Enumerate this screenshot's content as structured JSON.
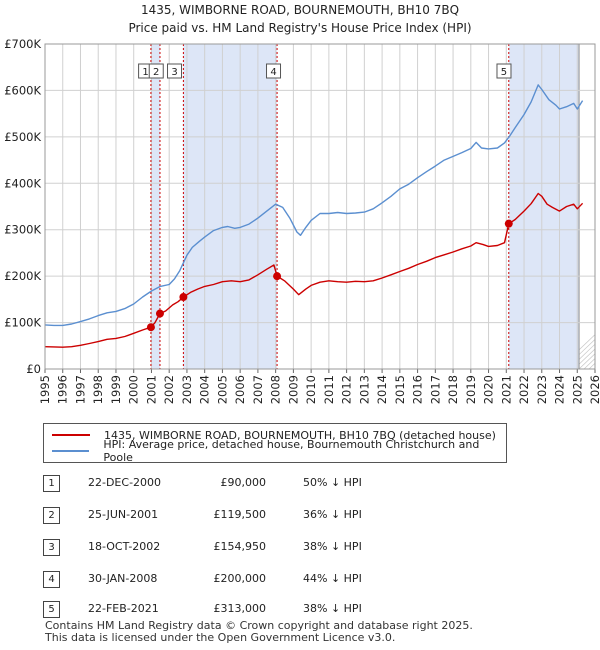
{
  "chart_data": {
    "type": "line",
    "title": "1435, WIMBORNE ROAD, BOURNEMOUTH, BH10 7BQ",
    "subtitle": "Price paid vs. HM Land Registry's House Price Index (HPI)",
    "xlabel": "",
    "ylabel": "",
    "xlim": [
      1995,
      2026
    ],
    "ylim": [
      0,
      700000
    ],
    "x_ticks": [
      "1995",
      "1996",
      "1997",
      "1998",
      "1999",
      "2000",
      "2001",
      "2002",
      "2003",
      "2004",
      "2005",
      "2006",
      "2007",
      "2008",
      "2009",
      "2010",
      "2011",
      "2012",
      "2013",
      "2014",
      "2015",
      "2016",
      "2017",
      "2018",
      "2019",
      "2020",
      "2021",
      "2022",
      "2023",
      "2024",
      "2025",
      "2026"
    ],
    "y_ticks": [
      {
        "value": 0,
        "label": "£0"
      },
      {
        "value": 100000,
        "label": "£100K"
      },
      {
        "value": 200000,
        "label": "£200K"
      },
      {
        "value": 300000,
        "label": "£300K"
      },
      {
        "value": 400000,
        "label": "£400K"
      },
      {
        "value": 500000,
        "label": "£500K"
      },
      {
        "value": 600000,
        "label": "£600K"
      },
      {
        "value": 700000,
        "label": "£700K"
      }
    ],
    "grid": true,
    "projection_start": 2025.1,
    "series": [
      {
        "name": "1435, WIMBORNE ROAD, BOURNEMOUTH, BH10 7BQ (detached house)",
        "color": "#cc0000",
        "points": [
          [
            1995,
            48000
          ],
          [
            1995.5,
            47500
          ],
          [
            1996,
            47000
          ],
          [
            1996.5,
            48000
          ],
          [
            1997,
            51000
          ],
          [
            1997.5,
            55000
          ],
          [
            1998,
            59000
          ],
          [
            1998.5,
            64000
          ],
          [
            1999,
            66000
          ],
          [
            1999.5,
            70000
          ],
          [
            2000,
            77000
          ],
          [
            2000.5,
            84000
          ],
          [
            2000.97,
            90000
          ],
          [
            2001.2,
            100000
          ],
          [
            2001.48,
            119500
          ],
          [
            2001.8,
            125000
          ],
          [
            2002.2,
            138000
          ],
          [
            2002.5,
            145000
          ],
          [
            2002.8,
            154950
          ],
          [
            2003.2,
            165000
          ],
          [
            2003.6,
            172000
          ],
          [
            2004,
            178000
          ],
          [
            2004.5,
            182000
          ],
          [
            2005,
            188000
          ],
          [
            2005.5,
            190000
          ],
          [
            2006,
            188000
          ],
          [
            2006.5,
            192000
          ],
          [
            2007,
            203000
          ],
          [
            2007.5,
            215000
          ],
          [
            2007.9,
            224000
          ],
          [
            2008.08,
            200000
          ],
          [
            2008.5,
            190000
          ],
          [
            2009,
            172000
          ],
          [
            2009.3,
            160000
          ],
          [
            2009.7,
            172000
          ],
          [
            2010,
            180000
          ],
          [
            2010.5,
            187000
          ],
          [
            2011,
            190000
          ],
          [
            2011.5,
            188000
          ],
          [
            2012,
            187000
          ],
          [
            2012.5,
            189000
          ],
          [
            2013,
            188000
          ],
          [
            2013.5,
            190000
          ],
          [
            2014,
            196000
          ],
          [
            2014.5,
            203000
          ],
          [
            2015,
            210000
          ],
          [
            2015.5,
            217000
          ],
          [
            2016,
            225000
          ],
          [
            2016.5,
            232000
          ],
          [
            2017,
            240000
          ],
          [
            2017.5,
            246000
          ],
          [
            2018,
            252000
          ],
          [
            2018.5,
            259000
          ],
          [
            2019,
            265000
          ],
          [
            2019.3,
            272000
          ],
          [
            2019.7,
            268000
          ],
          [
            2020,
            264000
          ],
          [
            2020.5,
            266000
          ],
          [
            2020.9,
            272000
          ],
          [
            2021.14,
            313000
          ],
          [
            2021.5,
            322000
          ],
          [
            2022,
            340000
          ],
          [
            2022.4,
            356000
          ],
          [
            2022.8,
            378000
          ],
          [
            2023,
            372000
          ],
          [
            2023.3,
            355000
          ],
          [
            2023.6,
            348000
          ],
          [
            2024,
            340000
          ],
          [
            2024.4,
            350000
          ],
          [
            2024.8,
            355000
          ],
          [
            2025,
            345000
          ],
          [
            2025.3,
            357000
          ]
        ]
      },
      {
        "name": "HPI: Average price, detached house, Bournemouth Christchurch and Poole",
        "color": "#5b8fd0",
        "points": [
          [
            1995,
            95000
          ],
          [
            1995.5,
            94000
          ],
          [
            1996,
            94000
          ],
          [
            1996.5,
            97000
          ],
          [
            1997,
            102000
          ],
          [
            1997.5,
            108000
          ],
          [
            1998,
            115000
          ],
          [
            1998.5,
            121000
          ],
          [
            1999,
            124000
          ],
          [
            1999.5,
            130000
          ],
          [
            2000,
            140000
          ],
          [
            2000.5,
            155000
          ],
          [
            2001,
            168000
          ],
          [
            2001.5,
            178000
          ],
          [
            2002,
            182000
          ],
          [
            2002.3,
            194000
          ],
          [
            2002.6,
            212000
          ],
          [
            2003,
            245000
          ],
          [
            2003.3,
            262000
          ],
          [
            2003.7,
            275000
          ],
          [
            2004,
            284000
          ],
          [
            2004.5,
            298000
          ],
          [
            2005,
            305000
          ],
          [
            2005.3,
            307000
          ],
          [
            2005.7,
            303000
          ],
          [
            2006,
            305000
          ],
          [
            2006.5,
            312000
          ],
          [
            2007,
            325000
          ],
          [
            2007.5,
            340000
          ],
          [
            2008,
            355000
          ],
          [
            2008.4,
            348000
          ],
          [
            2008.8,
            325000
          ],
          [
            2009.2,
            295000
          ],
          [
            2009.4,
            288000
          ],
          [
            2009.7,
            305000
          ],
          [
            2010,
            320000
          ],
          [
            2010.5,
            335000
          ],
          [
            2011,
            335000
          ],
          [
            2011.5,
            337000
          ],
          [
            2012,
            335000
          ],
          [
            2012.5,
            336000
          ],
          [
            2013,
            338000
          ],
          [
            2013.5,
            345000
          ],
          [
            2014,
            358000
          ],
          [
            2014.5,
            372000
          ],
          [
            2015,
            388000
          ],
          [
            2015.5,
            398000
          ],
          [
            2016,
            412000
          ],
          [
            2016.5,
            425000
          ],
          [
            2017,
            437000
          ],
          [
            2017.5,
            450000
          ],
          [
            2018,
            458000
          ],
          [
            2018.5,
            466000
          ],
          [
            2019,
            475000
          ],
          [
            2019.3,
            488000
          ],
          [
            2019.6,
            476000
          ],
          [
            2020,
            474000
          ],
          [
            2020.5,
            476000
          ],
          [
            2020.9,
            487000
          ],
          [
            2021.2,
            502000
          ],
          [
            2021.5,
            520000
          ],
          [
            2022,
            548000
          ],
          [
            2022.4,
            575000
          ],
          [
            2022.8,
            612000
          ],
          [
            2023,
            602000
          ],
          [
            2023.4,
            580000
          ],
          [
            2023.8,
            568000
          ],
          [
            2024,
            560000
          ],
          [
            2024.4,
            565000
          ],
          [
            2024.8,
            572000
          ],
          [
            2025,
            560000
          ],
          [
            2025.3,
            578000
          ]
        ]
      }
    ],
    "sales": [
      {
        "num": "1",
        "x": 2000.97,
        "price": 90000,
        "marker_x": 2000.97,
        "label_x": 2000.67
      },
      {
        "num": "2",
        "x": 2001.48,
        "price": 119500,
        "marker_x": 2001.48,
        "label_x": 2001.27
      },
      {
        "num": "3",
        "x": 2002.8,
        "price": 154950,
        "marker_x": 2002.8,
        "label_x": 2002.3
      },
      {
        "num": "4",
        "x": 2008.08,
        "price": 200000,
        "marker_x": 2008.08,
        "label_x": 2007.88
      },
      {
        "num": "5",
        "x": 2021.14,
        "price": 313000,
        "marker_x": 2021.14,
        "label_x": 2020.87
      }
    ],
    "shaded_spans": [
      [
        2000.97,
        2001.48
      ],
      [
        2002.8,
        2008.08
      ],
      [
        2021.14,
        2025.1
      ]
    ],
    "colors": {
      "red": "#cc0000",
      "blue": "#5b8fd0",
      "shade": "#dde6f7",
      "grid": "#d0d0d0"
    }
  },
  "legend": {
    "property": "1435, WIMBORNE ROAD, BOURNEMOUTH, BH10 7BQ (detached house)",
    "hpi": "HPI: Average price, detached house, Bournemouth Christchurch and Poole"
  },
  "transactions": [
    {
      "num": "1",
      "date": "22-DEC-2000",
      "price": "£90,000",
      "diff": "50% ↓ HPI"
    },
    {
      "num": "2",
      "date": "25-JUN-2001",
      "price": "£119,500",
      "diff": "36% ↓ HPI"
    },
    {
      "num": "3",
      "date": "18-OCT-2002",
      "price": "£154,950",
      "diff": "38% ↓ HPI"
    },
    {
      "num": "4",
      "date": "30-JAN-2008",
      "price": "£200,000",
      "diff": "44% ↓ HPI"
    },
    {
      "num": "5",
      "date": "22-FEB-2021",
      "price": "£313,000",
      "diff": "38% ↓ HPI"
    }
  ],
  "footer": {
    "line1": "Contains HM Land Registry data © Crown copyright and database right 2025.",
    "line2": "This data is licensed under the Open Government Licence v3.0."
  }
}
